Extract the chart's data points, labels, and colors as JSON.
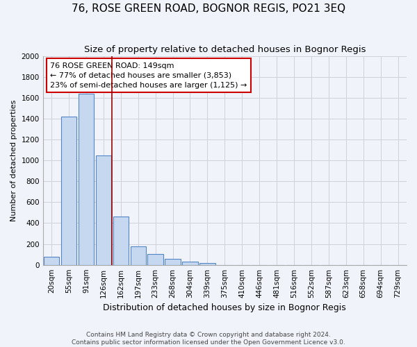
{
  "title": "76, ROSE GREEN ROAD, BOGNOR REGIS, PO21 3EQ",
  "subtitle": "Size of property relative to detached houses in Bognor Regis",
  "xlabel": "Distribution of detached houses by size in Bognor Regis",
  "ylabel": "Number of detached properties",
  "categories": [
    "20sqm",
    "55sqm",
    "91sqm",
    "126sqm",
    "162sqm",
    "197sqm",
    "233sqm",
    "268sqm",
    "304sqm",
    "339sqm",
    "375sqm",
    "410sqm",
    "446sqm",
    "481sqm",
    "516sqm",
    "552sqm",
    "587sqm",
    "623sqm",
    "658sqm",
    "694sqm",
    "729sqm"
  ],
  "values": [
    75,
    1420,
    1640,
    1050,
    460,
    175,
    105,
    60,
    30,
    20,
    0,
    0,
    0,
    0,
    0,
    0,
    0,
    0,
    0,
    0,
    0
  ],
  "bar_color": "#c5d8f0",
  "bar_edge_color": "#5585c5",
  "vline_color": "#990000",
  "annotation_text": "76 ROSE GREEN ROAD: 149sqm\n← 77% of detached houses are smaller (3,853)\n23% of semi-detached houses are larger (1,125) →",
  "annotation_box_color": "#cc0000",
  "ylim": [
    0,
    2000
  ],
  "yticks": [
    0,
    200,
    400,
    600,
    800,
    1000,
    1200,
    1400,
    1600,
    1800,
    2000
  ],
  "grid_color": "#d0d0d8",
  "background_color": "#f0f4fa",
  "footer": "Contains HM Land Registry data © Crown copyright and database right 2024.\nContains public sector information licensed under the Open Government Licence v3.0.",
  "title_fontsize": 11,
  "subtitle_fontsize": 9.5,
  "xlabel_fontsize": 9,
  "ylabel_fontsize": 8,
  "tick_fontsize": 7.5,
  "annotation_fontsize": 8,
  "footer_fontsize": 6.5
}
